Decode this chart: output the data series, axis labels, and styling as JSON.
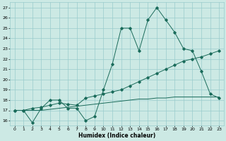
{
  "xlabel": "Humidex (Indice chaleur)",
  "ylabel": "",
  "background_color": "#cce9e4",
  "grid_color": "#99cccc",
  "line_color": "#1a6b5a",
  "xlim": [
    -0.5,
    23.5
  ],
  "ylim": [
    15.5,
    27.5
  ],
  "xticks": [
    0,
    1,
    2,
    3,
    4,
    5,
    6,
    7,
    8,
    9,
    10,
    11,
    12,
    13,
    14,
    15,
    16,
    17,
    18,
    19,
    20,
    21,
    22,
    23
  ],
  "yticks": [
    16,
    17,
    18,
    19,
    20,
    21,
    22,
    23,
    24,
    25,
    26,
    27
  ],
  "series1_x": [
    0,
    1,
    2,
    3,
    4,
    5,
    6,
    7,
    8,
    9,
    10,
    11,
    12,
    13,
    14,
    15,
    16,
    17,
    18,
    19,
    20,
    21,
    22,
    23
  ],
  "series1_y": [
    17.0,
    17.0,
    15.8,
    17.2,
    18.0,
    18.0,
    17.2,
    17.2,
    16.0,
    16.4,
    19.0,
    21.5,
    25.0,
    25.0,
    22.8,
    25.8,
    27.0,
    25.8,
    24.6,
    23.0,
    22.8,
    20.8,
    18.6,
    18.2
  ],
  "series2_x": [
    0,
    1,
    2,
    3,
    4,
    5,
    6,
    7,
    8,
    9,
    10,
    11,
    12,
    13,
    14,
    15,
    16,
    17,
    18,
    19,
    20,
    21,
    22,
    23
  ],
  "series2_y": [
    17.0,
    17.0,
    17.2,
    17.3,
    17.5,
    17.7,
    17.6,
    17.5,
    18.2,
    18.4,
    18.6,
    18.8,
    19.0,
    19.4,
    19.8,
    20.2,
    20.6,
    21.0,
    21.4,
    21.8,
    22.0,
    22.2,
    22.5,
    22.8
  ],
  "series3_x": [
    0,
    1,
    2,
    3,
    4,
    5,
    6,
    7,
    8,
    9,
    10,
    11,
    12,
    13,
    14,
    15,
    16,
    17,
    18,
    19,
    20,
    21,
    22,
    23
  ],
  "series3_y": [
    17.0,
    17.0,
    17.0,
    17.0,
    17.1,
    17.2,
    17.3,
    17.4,
    17.5,
    17.6,
    17.7,
    17.8,
    17.9,
    18.0,
    18.1,
    18.1,
    18.2,
    18.2,
    18.3,
    18.3,
    18.3,
    18.3,
    18.3,
    18.3
  ]
}
